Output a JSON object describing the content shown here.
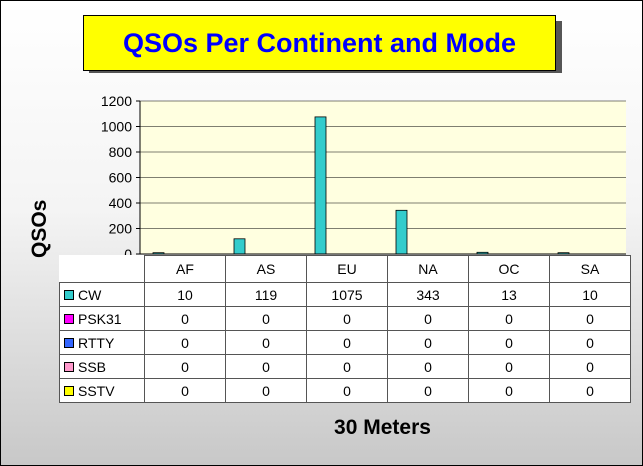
{
  "chart_data": {
    "type": "bar",
    "title": "QSOs Per Continent and Mode",
    "xlabel": "30 Meters",
    "ylabel": "QSOs",
    "categories": [
      "AF",
      "AS",
      "EU",
      "NA",
      "OC",
      "SA"
    ],
    "ylim": [
      0,
      1200
    ],
    "yticks": [
      0,
      200,
      400,
      600,
      800,
      1000,
      1200
    ],
    "grid": true,
    "legend": "table-left",
    "series": [
      {
        "name": "CW",
        "color": "#33cccc",
        "values": [
          10,
          119,
          1075,
          343,
          13,
          10
        ]
      },
      {
        "name": "PSK31",
        "color": "#ff00ff",
        "values": [
          0,
          0,
          0,
          0,
          0,
          0
        ]
      },
      {
        "name": "RTTY",
        "color": "#3366ff",
        "values": [
          0,
          0,
          0,
          0,
          0,
          0
        ]
      },
      {
        "name": "SSB",
        "color": "#ff99cc",
        "values": [
          0,
          0,
          0,
          0,
          0,
          0
        ]
      },
      {
        "name": "SSTV",
        "color": "#ffff00",
        "values": [
          0,
          0,
          0,
          0,
          0,
          0
        ]
      }
    ],
    "plot_background": "#ffffe0",
    "title_color": "#0000ff",
    "title_background": "#ffff00"
  }
}
